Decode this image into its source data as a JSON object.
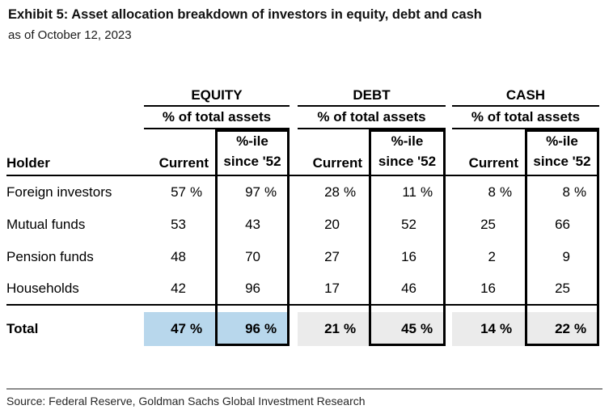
{
  "title": "Exhibit 5: Asset allocation breakdown of investors in equity, debt and cash",
  "subtitle": "as of October 12, 2023",
  "source": "Source: Federal Reserve, Goldman Sachs Global Investment Research",
  "colors": {
    "equity_total_highlight": "#b8d7ec",
    "debt_cash_total_highlight": "#ebebeb"
  },
  "table": {
    "holder_header": "Holder",
    "sections": [
      {
        "name": "EQUITY",
        "subheader": "% of total assets",
        "col_current": "Current",
        "col_pctile_line1": "%-ile",
        "col_pctile_line2": "since '52"
      },
      {
        "name": "DEBT",
        "subheader": "% of total assets",
        "col_current": "Current",
        "col_pctile_line1": "%-ile",
        "col_pctile_line2": "since '52"
      },
      {
        "name": "CASH",
        "subheader": "% of total assets",
        "col_current": "Current",
        "col_pctile_line1": "%-ile",
        "col_pctile_line2": "since '52"
      }
    ],
    "rows": [
      {
        "label": "Foreign investors",
        "values": [
          {
            "n": "57",
            "u": "%"
          },
          {
            "n": "97",
            "u": "%"
          },
          {
            "n": "28",
            "u": "%"
          },
          {
            "n": "11",
            "u": "%"
          },
          {
            "n": "8",
            "u": "%"
          },
          {
            "n": "8",
            "u": "%"
          }
        ]
      },
      {
        "label": "Mutual funds",
        "values": [
          {
            "n": "53",
            "u": ""
          },
          {
            "n": "43",
            "u": ""
          },
          {
            "n": "20",
            "u": ""
          },
          {
            "n": "52",
            "u": ""
          },
          {
            "n": "25",
            "u": ""
          },
          {
            "n": "66",
            "u": ""
          }
        ]
      },
      {
        "label": "Pension funds",
        "values": [
          {
            "n": "48",
            "u": ""
          },
          {
            "n": "70",
            "u": ""
          },
          {
            "n": "27",
            "u": ""
          },
          {
            "n": "16",
            "u": ""
          },
          {
            "n": "2",
            "u": ""
          },
          {
            "n": "9",
            "u": ""
          }
        ]
      },
      {
        "label": "Households",
        "values": [
          {
            "n": "42",
            "u": ""
          },
          {
            "n": "96",
            "u": ""
          },
          {
            "n": "17",
            "u": ""
          },
          {
            "n": "46",
            "u": ""
          },
          {
            "n": "16",
            "u": ""
          },
          {
            "n": "25",
            "u": ""
          }
        ]
      }
    ],
    "total": {
      "label": "Total",
      "values": [
        {
          "n": "47",
          "u": "%"
        },
        {
          "n": "96",
          "u": "%"
        },
        {
          "n": "21",
          "u": "%"
        },
        {
          "n": "45",
          "u": "%"
        },
        {
          "n": "14",
          "u": "%"
        },
        {
          "n": "22",
          "u": "%"
        }
      ]
    }
  }
}
